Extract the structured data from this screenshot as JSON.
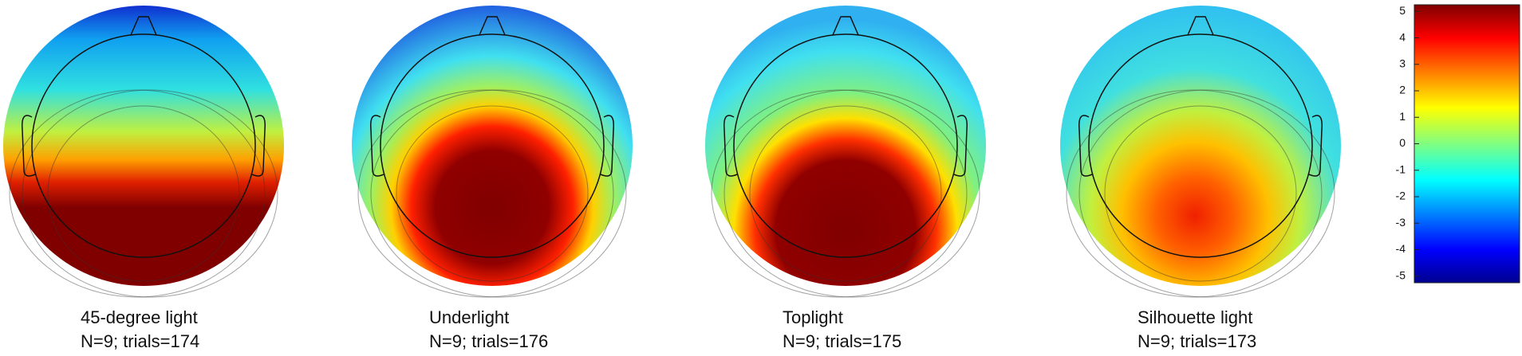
{
  "panels": [
    {
      "title": "45-degree light",
      "subtitle": "N=9; trials=174"
    },
    {
      "title": "Underlight",
      "subtitle": "N=9; trials=176"
    },
    {
      "title": "Toplight",
      "subtitle": "N=9; trials=175"
    },
    {
      "title": "Silhouette light",
      "subtitle": "N=9; trials=173"
    }
  ],
  "colorbar": {
    "lim": [
      -5.25,
      5.25
    ],
    "ticks": [
      -5,
      -4,
      -3,
      -2,
      -1,
      0,
      1,
      2,
      3,
      4,
      5
    ]
  }
}
